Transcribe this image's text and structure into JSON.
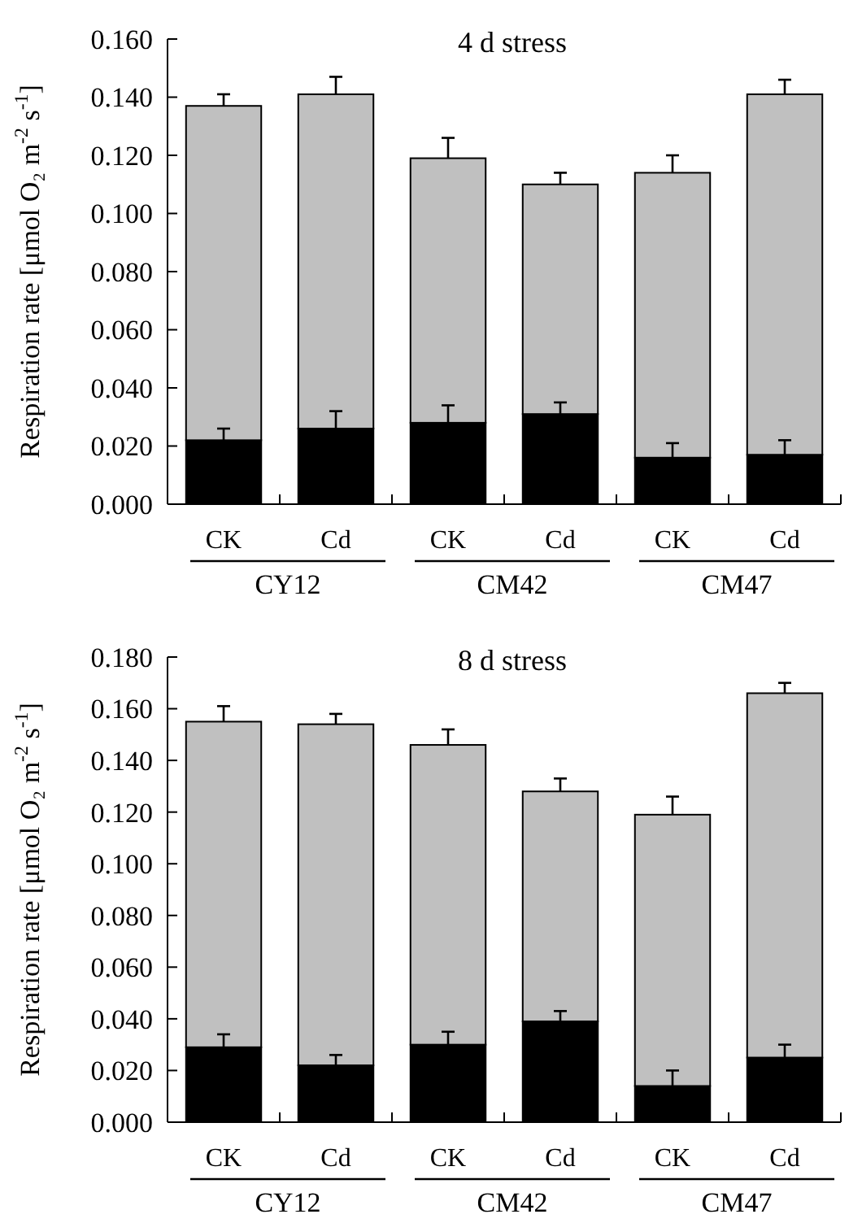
{
  "chart_data": [
    {
      "type": "bar",
      "title": "4 d stress",
      "ylabel": "Respiration rate [μmol O₂ m$^{-2}$ s$^{-1}$]",
      "categories": [
        "CK",
        "Cd",
        "CK",
        "Cd",
        "CK",
        "Cd"
      ],
      "stacked": true,
      "series": [
        {
          "color": "#000000",
          "values": [
            0.022,
            0.026,
            0.028,
            0.031,
            0.016,
            0.017
          ],
          "errors": [
            0.004,
            0.006,
            0.006,
            0.004,
            0.005,
            0.005
          ]
        },
        {
          "color": "#c0c0c0",
          "values": [
            0.115,
            0.115,
            0.091,
            0.079,
            0.098,
            0.124
          ],
          "errors": [
            0.004,
            0.006,
            0.007,
            0.004,
            0.006,
            0.005
          ]
        }
      ],
      "ylim": [
        0,
        0.16
      ],
      "yticks": [
        {
          "value": 0,
          "label": "0.000"
        },
        {
          "value": 0.02,
          "label": "0.020"
        },
        {
          "value": 0.04,
          "label": "0.040"
        },
        {
          "value": 0.06,
          "label": "0.060"
        },
        {
          "value": 0.08,
          "label": "0.080"
        },
        {
          "value": 0.1,
          "label": "0.100"
        },
        {
          "value": 0.12,
          "label": "0.120"
        },
        {
          "value": 0.14,
          "label": "0.140"
        },
        {
          "value": 0.16,
          "label": "0.160"
        }
      ],
      "annotations": [
        "CY12",
        "CM42",
        "CM47"
      ],
      "grid": false
    },
    {
      "type": "bar",
      "title": "8 d stress",
      "ylabel": "Respiration rate [μmol O₂ m$^{-2}$ s$^{-1}$]",
      "categories": [
        "CK",
        "Cd",
        "CK",
        "Cd",
        "CK",
        "Cd"
      ],
      "stacked": true,
      "series": [
        {
          "color": "#000000",
          "values": [
            0.029,
            0.022,
            0.03,
            0.039,
            0.014,
            0.025
          ],
          "errors": [
            0.005,
            0.004,
            0.005,
            0.004,
            0.006,
            0.005
          ]
        },
        {
          "color": "#c0c0c0",
          "values": [
            0.126,
            0.132,
            0.116,
            0.089,
            0.105,
            0.141
          ],
          "errors": [
            0.006,
            0.004,
            0.006,
            0.005,
            0.007,
            0.004
          ]
        }
      ],
      "ylim": [
        0,
        0.18
      ],
      "yticks": [
        {
          "value": 0,
          "label": "0.000"
        },
        {
          "value": 0.02,
          "label": "0.020"
        },
        {
          "value": 0.04,
          "label": "0.040"
        },
        {
          "value": 0.06,
          "label": "0.060"
        },
        {
          "value": 0.08,
          "label": "0.080"
        },
        {
          "value": 0.1,
          "label": "0.100"
        },
        {
          "value": 0.12,
          "label": "0.120"
        },
        {
          "value": 0.14,
          "label": "0.140"
        },
        {
          "value": 0.16,
          "label": "0.160"
        },
        {
          "value": 0.18,
          "label": "0.180"
        }
      ],
      "annotations": [
        "CY12",
        "CM42",
        "CM47"
      ],
      "grid": false
    }
  ]
}
